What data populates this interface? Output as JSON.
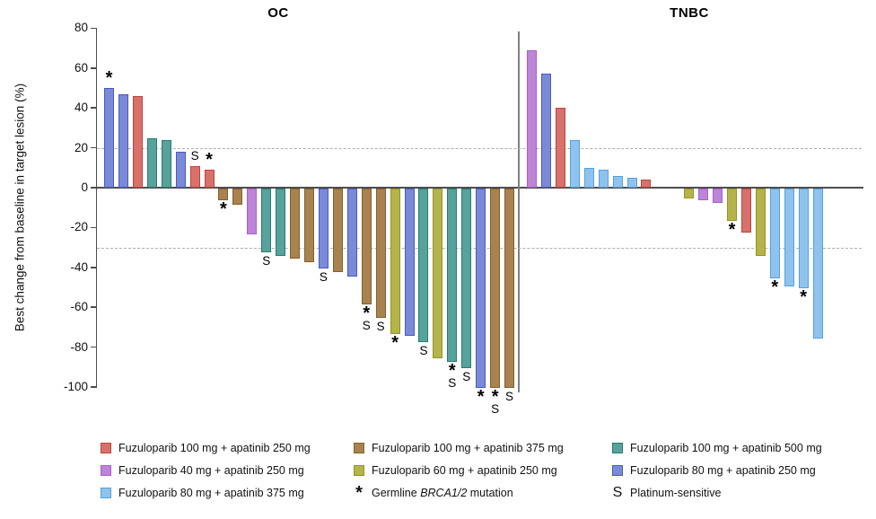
{
  "chart_data": {
    "type": "bar",
    "ylabel": "Best change from baseline in target lesion (%)",
    "ylim": [
      -100,
      80
    ],
    "yticks": [
      80,
      60,
      40,
      20,
      0,
      -20,
      -40,
      -60,
      -80,
      -100
    ],
    "reference_lines": [
      20,
      -30
    ],
    "marks_key": {
      "*": "Germline BRCA1/2 mutation",
      "S": "Platinum-sensitive"
    },
    "groups": [
      {
        "title": "OC",
        "bars": [
          {
            "value": 50,
            "color": "blue",
            "marks": [
              "*"
            ]
          },
          {
            "value": 47,
            "color": "blue"
          },
          {
            "value": 46,
            "color": "red"
          },
          {
            "value": 25,
            "color": "teal"
          },
          {
            "value": 24,
            "color": "teal"
          },
          {
            "value": 18,
            "color": "blue"
          },
          {
            "value": 11,
            "color": "red",
            "marks": [
              "S"
            ]
          },
          {
            "value": 9,
            "color": "red",
            "marks": [
              "*"
            ]
          },
          {
            "value": -6,
            "color": "brown",
            "marks": [
              "*"
            ]
          },
          {
            "value": -8,
            "color": "brown"
          },
          {
            "value": -23,
            "color": "purple"
          },
          {
            "value": -32,
            "color": "teal",
            "marks": [
              "S"
            ]
          },
          {
            "value": -34,
            "color": "teal"
          },
          {
            "value": -35,
            "color": "brown"
          },
          {
            "value": -37,
            "color": "brown"
          },
          {
            "value": -40,
            "color": "blue",
            "marks": [
              "S"
            ]
          },
          {
            "value": -42,
            "color": "brown"
          },
          {
            "value": -44,
            "color": "blue"
          },
          {
            "value": -58,
            "color": "brown",
            "marks": [
              "*",
              "S"
            ]
          },
          {
            "value": -65,
            "color": "brown",
            "marks": [
              "S"
            ]
          },
          {
            "value": -73,
            "color": "olive",
            "marks": [
              "*"
            ]
          },
          {
            "value": -74,
            "color": "blue"
          },
          {
            "value": -77,
            "color": "teal",
            "marks": [
              "S"
            ]
          },
          {
            "value": -85,
            "color": "olive"
          },
          {
            "value": -87,
            "color": "teal",
            "marks": [
              "*",
              "S"
            ]
          },
          {
            "value": -90,
            "color": "teal",
            "marks": [
              "S"
            ]
          },
          {
            "value": -100,
            "color": "blue",
            "marks": [
              "*"
            ]
          },
          {
            "value": -100,
            "color": "brown",
            "marks": [
              "*",
              "S"
            ]
          },
          {
            "value": -100,
            "color": "brown",
            "marks": [
              "S"
            ]
          }
        ]
      },
      {
        "title": "TNBC",
        "bars": [
          {
            "value": 69,
            "color": "purple"
          },
          {
            "value": 57,
            "color": "blue"
          },
          {
            "value": 40,
            "color": "red"
          },
          {
            "value": 24,
            "color": "lightblue"
          },
          {
            "value": 10,
            "color": "lightblue"
          },
          {
            "value": 9,
            "color": "lightblue"
          },
          {
            "value": 6,
            "color": "lightblue"
          },
          {
            "value": 5,
            "color": "lightblue"
          },
          {
            "value": 4,
            "color": "red"
          },
          {
            "value": -5,
            "color": "olive",
            "gap_before": 2
          },
          {
            "value": -6,
            "color": "purple"
          },
          {
            "value": -7,
            "color": "purple"
          },
          {
            "value": -16,
            "color": "olive",
            "marks": [
              "*"
            ]
          },
          {
            "value": -22,
            "color": "red"
          },
          {
            "value": -34,
            "color": "olive"
          },
          {
            "value": -45,
            "color": "lightblue",
            "marks": [
              "*"
            ]
          },
          {
            "value": -49,
            "color": "lightblue"
          },
          {
            "value": -50,
            "color": "lightblue",
            "marks": [
              "*"
            ]
          },
          {
            "value": -75,
            "color": "lightblue"
          }
        ]
      }
    ],
    "palette": {
      "red": {
        "fill": "#d7716c",
        "stroke": "#c2423c"
      },
      "brown": {
        "fill": "#a9834f",
        "stroke": "#82612c"
      },
      "teal": {
        "fill": "#57a29b",
        "stroke": "#267d73"
      },
      "purple": {
        "fill": "#bd85d6",
        "stroke": "#a85fce"
      },
      "olive": {
        "fill": "#b5b34c",
        "stroke": "#94951f"
      },
      "blue": {
        "fill": "#7b8ad6",
        "stroke": "#4a59c4"
      },
      "lightblue": {
        "fill": "#8fc3ee",
        "stroke": "#55a0de"
      }
    },
    "legend": [
      {
        "type": "swatch",
        "color": "red",
        "label": "Fuzuloparib 100 mg + apatinib 250 mg"
      },
      {
        "type": "swatch",
        "color": "brown",
        "label": "Fuzuloparib 100 mg + apatinib 375 mg"
      },
      {
        "type": "swatch",
        "color": "teal",
        "label": "Fuzuloparib 100 mg + apatinib 500 mg"
      },
      {
        "type": "swatch",
        "color": "purple",
        "label": "Fuzuloparib 40 mg + apatinib 250 mg"
      },
      {
        "type": "swatch",
        "color": "olive",
        "label": "Fuzuloparib 60 mg + apatinib 250 mg"
      },
      {
        "type": "swatch",
        "color": "blue",
        "label": "Fuzuloparib 80 mg + apatinib 250 mg"
      },
      {
        "type": "swatch",
        "color": "lightblue",
        "label": "Fuzuloparib 80 mg + apatinib 375 mg"
      },
      {
        "type": "symbol",
        "symbol": "*",
        "label": "Germline BRCA1/2 mutation",
        "italic_segment": "BRCA1/2"
      },
      {
        "type": "symbol",
        "symbol": "S",
        "label": "Platinum-sensitive"
      }
    ]
  }
}
